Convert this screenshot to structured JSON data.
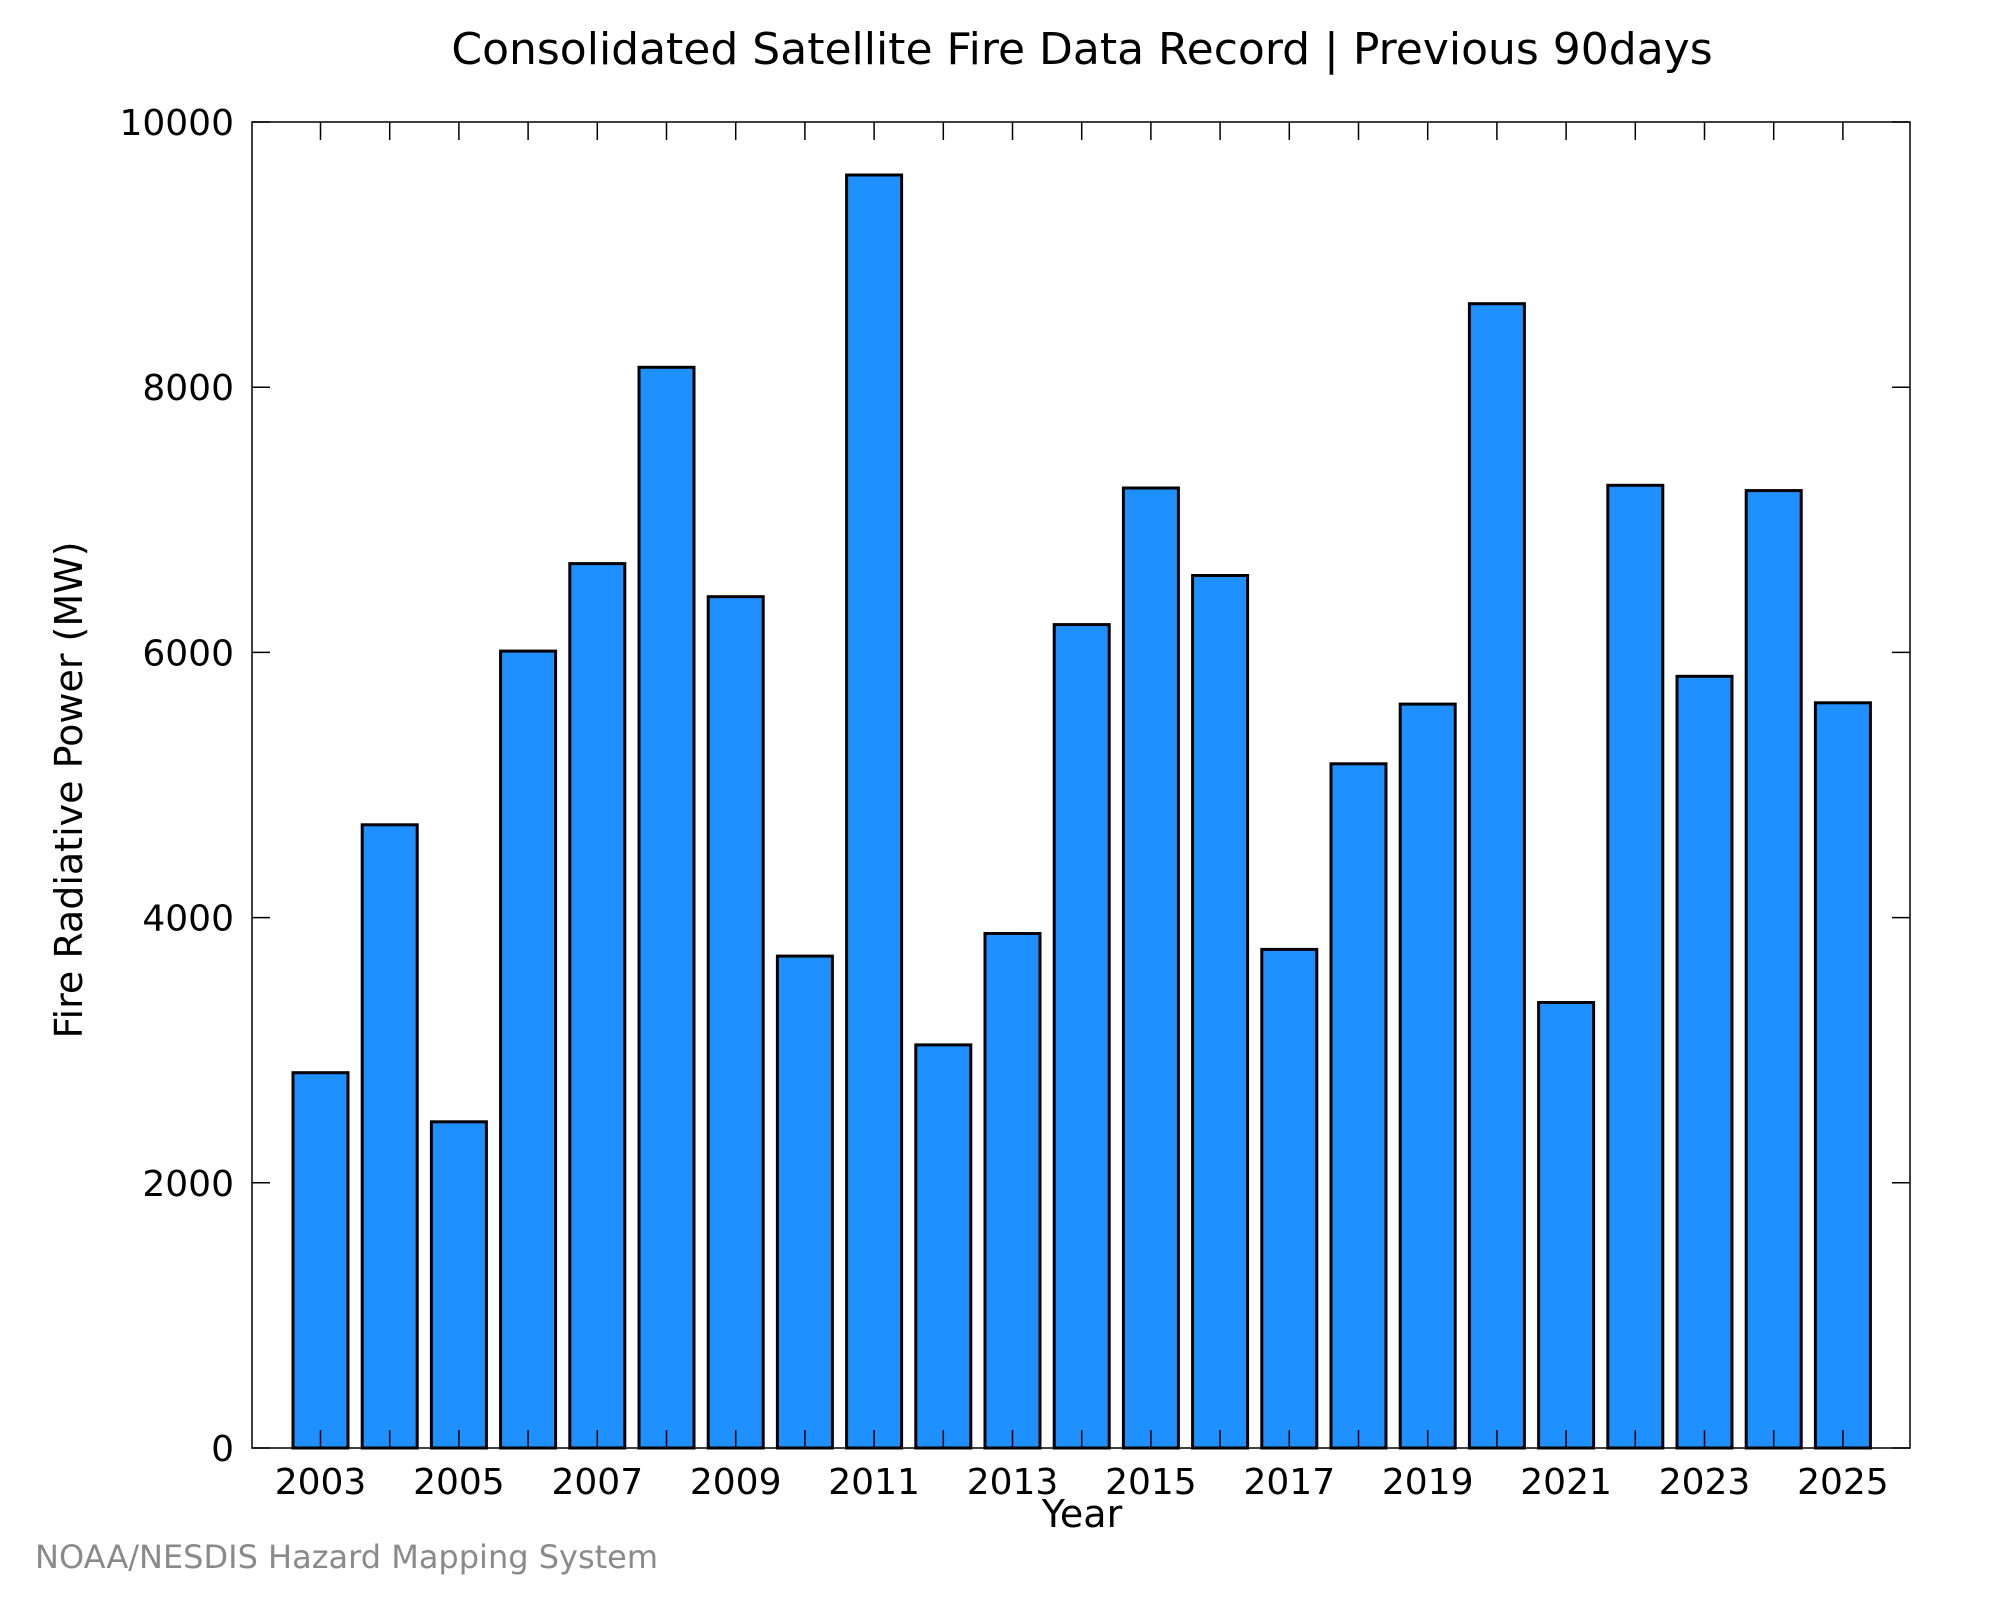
{
  "chart_data": {
    "type": "bar",
    "title": "Consolidated Satellite Fire Data Record | Previous 90days",
    "xlabel": "Year",
    "ylabel": "Fire Radiative Power (MW)",
    "categories": [
      "2003",
      "2004",
      "2005",
      "2006",
      "2007",
      "2008",
      "2009",
      "2010",
      "2011",
      "2012",
      "2013",
      "2014",
      "2015",
      "2016",
      "2017",
      "2018",
      "2019",
      "2020",
      "2021",
      "2022",
      "2023",
      "2024",
      "2025"
    ],
    "x_tick_labels": [
      "2003",
      "2005",
      "2007",
      "2009",
      "2011",
      "2013",
      "2015",
      "2017",
      "2019",
      "2021",
      "2023",
      "2025"
    ],
    "y_tick_labels": [
      "0",
      "2000",
      "4000",
      "6000",
      "8000",
      "10000"
    ],
    "y_ticks": [
      0,
      2000,
      4000,
      6000,
      8000,
      10000
    ],
    "values": [
      2830,
      4700,
      2460,
      6010,
      6670,
      8150,
      6420,
      3710,
      9600,
      3040,
      3880,
      6210,
      7240,
      6580,
      3760,
      5160,
      5610,
      8630,
      3360,
      7260,
      5820,
      7220,
      5620
    ],
    "ylim": [
      0,
      10000
    ],
    "grid": false,
    "bar_color": "#1e90ff",
    "edge_color": "#000000"
  },
  "credit": "NOAA/NESDIS Hazard Mapping System"
}
